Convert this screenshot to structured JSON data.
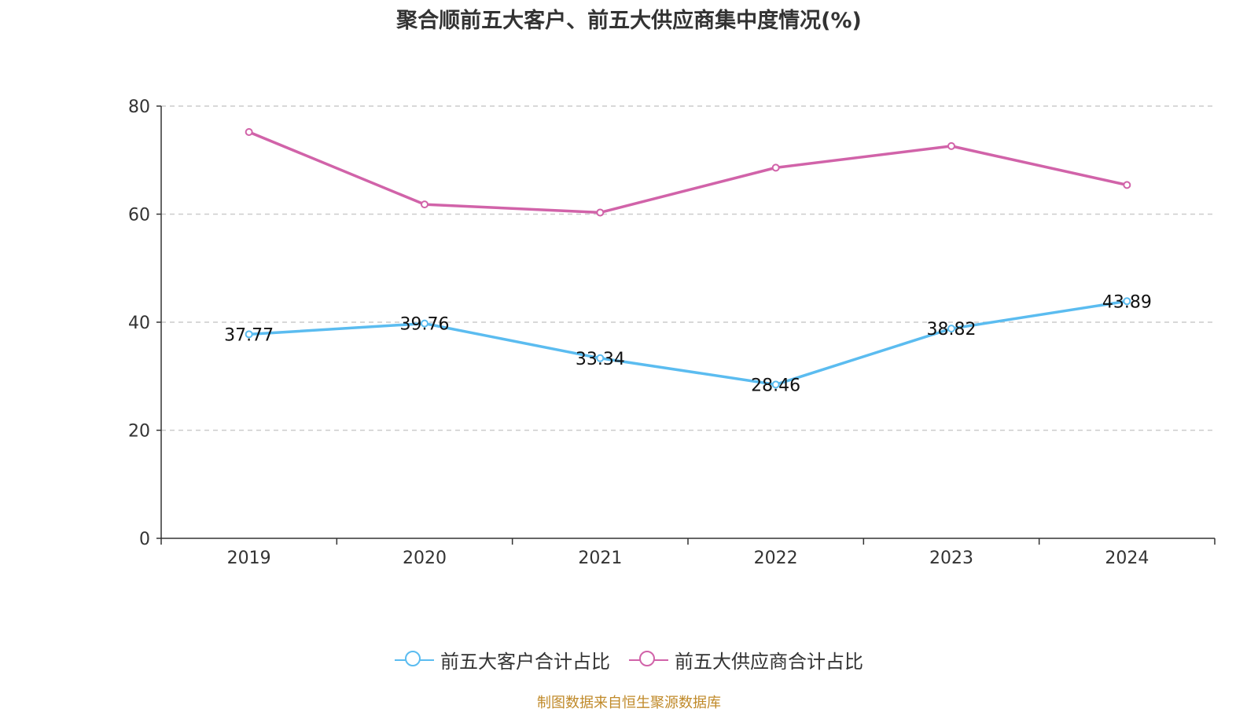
{
  "chart_data": {
    "type": "line",
    "title": "聚合顺前五大客户、前五大供应商集中度情况(%)",
    "categories": [
      "2019",
      "2020",
      "2021",
      "2022",
      "2023",
      "2024"
    ],
    "ylim": [
      0,
      80
    ],
    "yticks": [
      0,
      20,
      40,
      60,
      80
    ],
    "grid": true,
    "legend_position": "bottom",
    "series": [
      {
        "name": "前五大客户合计占比",
        "color": "#5bbcf0",
        "values": [
          37.77,
          39.76,
          33.34,
          28.46,
          38.82,
          43.89
        ],
        "labels": [
          "37.77",
          "39.76",
          "33.34",
          "28.46",
          "38.82",
          "43.89"
        ],
        "show_labels": true
      },
      {
        "name": "前五大供应商合计占比",
        "color": "#d163a9",
        "values": [
          75.2,
          61.8,
          60.3,
          68.6,
          72.6,
          65.4
        ],
        "show_labels": false
      }
    ]
  },
  "source": "制图数据来自恒生聚源数据库"
}
